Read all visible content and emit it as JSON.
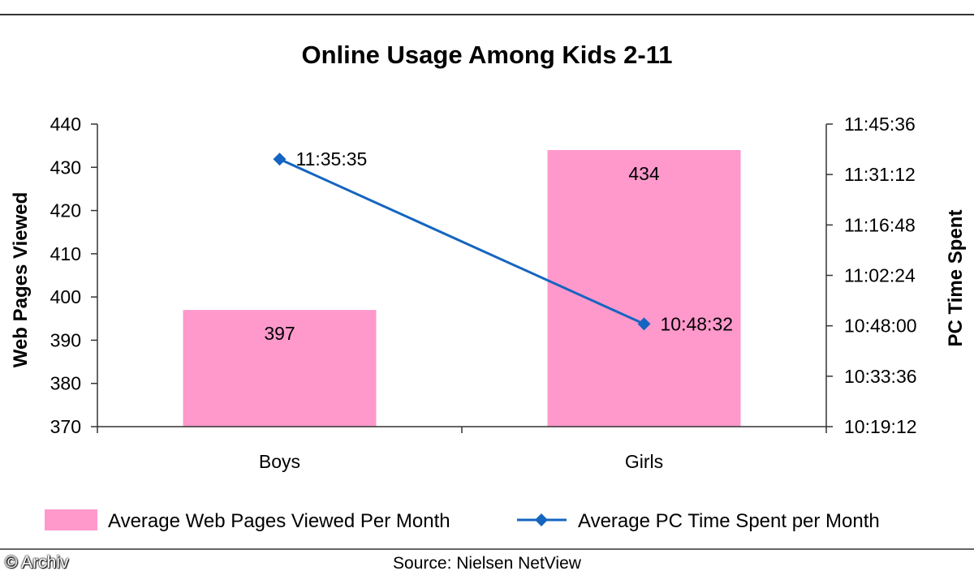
{
  "chart_data": {
    "type": "bar",
    "title": "Online Usage Among Kids 2-11",
    "categories": [
      "Boys",
      "Girls"
    ],
    "ylabel": "Web Pages Viewed",
    "y2label": "PC Time Spent",
    "ylim": [
      370,
      440
    ],
    "yticks": [
      "440",
      "430",
      "420",
      "410",
      "400",
      "390",
      "380",
      "370"
    ],
    "y2ticks": [
      "11:45:36",
      "11:31:12",
      "11:16:48",
      "11:02:24",
      "10:48:00",
      "10:33:36",
      "10:19:12"
    ],
    "y2lim_seconds": [
      37152,
      42336
    ],
    "grid": false,
    "legend_position": "bottom",
    "series": [
      {
        "name": "Average Web Pages Viewed Per Month",
        "type": "bar",
        "axis": "left",
        "values": [
          397,
          434
        ],
        "labels": [
          "397",
          "434"
        ],
        "color": "#ff99cc"
      },
      {
        "name": "Average PC Time Spent per Month",
        "type": "line",
        "axis": "right",
        "values": [
          "11:35:35",
          "10:48:32"
        ],
        "values_seconds": [
          41735,
          38912
        ],
        "labels": [
          "11:35:35",
          "10:48:32"
        ],
        "color": "#1565c0",
        "marker": "diamond"
      }
    ],
    "source": "Source: Nielsen NetView"
  },
  "copyright": "© Archiv"
}
